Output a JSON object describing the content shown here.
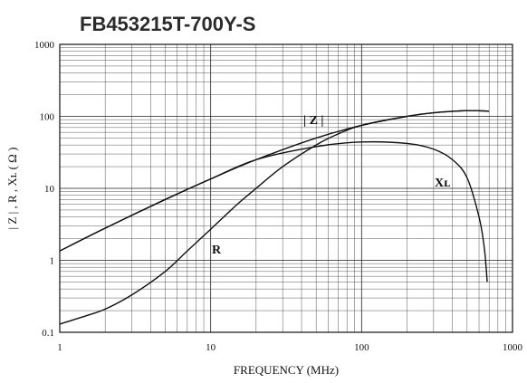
{
  "chart_data": {
    "type": "line",
    "title": "FB453215T-700Y-S",
    "xlabel": "FREQUENCY (MHz)",
    "ylabel": "| Z | , R , Xʟ ( Ω )",
    "x_scale": "log",
    "y_scale": "log",
    "xlim": [
      1,
      1000
    ],
    "ylim": [
      0.1,
      1000
    ],
    "x_ticks": [
      "1",
      "10",
      "100",
      "1000"
    ],
    "y_ticks": [
      "0.1",
      "1",
      "10",
      "100",
      "1000"
    ],
    "grid": true,
    "series": [
      {
        "name": "| Z |",
        "x": [
          1,
          2,
          5,
          10,
          20,
          50,
          100,
          200,
          300,
          500,
          700
        ],
        "y": [
          1.35,
          2.8,
          7.0,
          13.5,
          25,
          50,
          75,
          100,
          112,
          120,
          118
        ]
      },
      {
        "name": "Xʟ",
        "x": [
          1,
          2,
          5,
          10,
          20,
          50,
          100,
          200,
          300,
          400,
          500,
          600,
          650,
          680
        ],
        "y": [
          1.35,
          2.8,
          7.0,
          13.5,
          25,
          38,
          44,
          42,
          35,
          25,
          14,
          4,
          1.5,
          0.5
        ]
      },
      {
        "name": "R",
        "x": [
          1,
          1.5,
          2,
          3,
          5,
          7,
          10,
          15,
          20,
          30,
          50,
          70,
          100,
          200,
          300,
          500,
          700
        ],
        "y": [
          0.13,
          0.17,
          0.21,
          0.33,
          0.7,
          1.35,
          2.7,
          6,
          10,
          20,
          40,
          57,
          75,
          100,
          112,
          120,
          118
        ]
      }
    ],
    "annotations": [
      "| Z |",
      "Xʟ",
      "R"
    ]
  }
}
